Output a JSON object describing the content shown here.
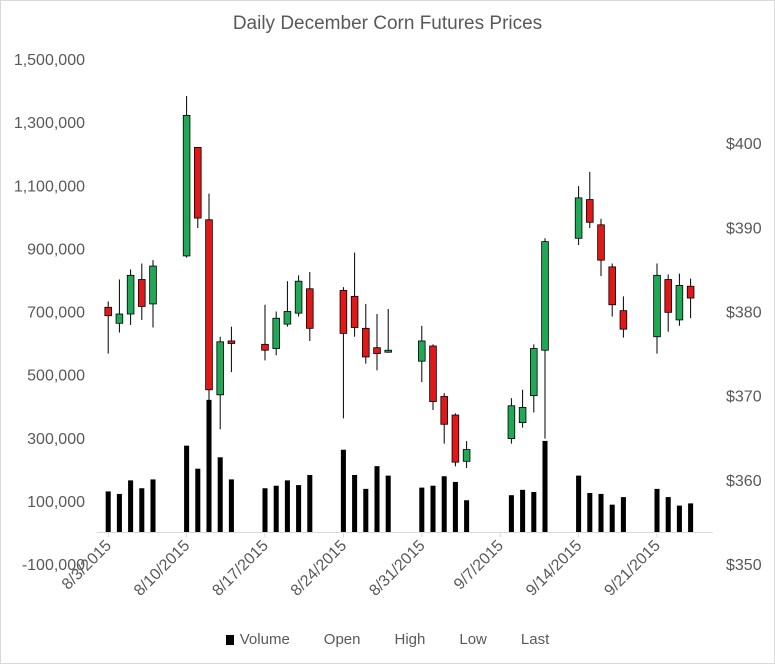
{
  "chart_data": {
    "type": "candlestick",
    "title": "Daily December Corn Futures Prices",
    "colors": {
      "up": "#21a856",
      "down": "#e01818",
      "volume": "#000000",
      "axis": "#d9d9d9",
      "text": "#595959"
    },
    "y_left": {
      "label": "",
      "ylim": [
        -100000,
        1500000
      ],
      "ticks": [
        "-100,000",
        "100,000",
        "300,000",
        "500,000",
        "700,000",
        "900,000",
        "1,100,000",
        "1,300,000",
        "1,500,000"
      ],
      "tick_values": [
        -100000,
        100000,
        300000,
        500000,
        700000,
        900000,
        1100000,
        1300000,
        1500000
      ]
    },
    "y_right": {
      "label": "",
      "ylim": [
        350,
        410
      ],
      "ticks": [
        "$350",
        "$360",
        "$370",
        "$380",
        "$390",
        "$400"
      ],
      "tick_values": [
        350,
        360,
        370,
        380,
        390,
        400
      ]
    },
    "x_axis": {
      "start_date": "2015-08-02",
      "end_date": "2015-09-26",
      "ticks": [
        "8/3/2015",
        "8/10/2015",
        "8/17/2015",
        "8/24/2015",
        "8/31/2015",
        "9/7/2015",
        "9/14/2015",
        "9/21/2015"
      ],
      "tick_dates": [
        "2015-08-03",
        "2015-08-10",
        "2015-08-17",
        "2015-08-24",
        "2015-08-31",
        "2015-09-07",
        "2015-09-14",
        "2015-09-21"
      ]
    },
    "legend": {
      "position": "bottom",
      "entries": [
        "Volume",
        "Open",
        "High",
        "Low",
        "Last"
      ]
    },
    "grid": false,
    "series": [
      {
        "date": "2015-08-03",
        "volume": 130000,
        "open": 380.5,
        "high": 381.2,
        "low": 375.0,
        "last": 379.5
      },
      {
        "date": "2015-08-04",
        "volume": 122000,
        "open": 378.6,
        "high": 383.8,
        "low": 377.5,
        "last": 379.7
      },
      {
        "date": "2015-08-05",
        "volume": 165000,
        "open": 379.7,
        "high": 385.0,
        "low": 378.4,
        "last": 384.3
      },
      {
        "date": "2015-08-06",
        "volume": 140000,
        "open": 383.8,
        "high": 385.7,
        "low": 379.0,
        "last": 380.6
      },
      {
        "date": "2015-08-07",
        "volume": 168000,
        "open": 380.9,
        "high": 386.1,
        "low": 378.1,
        "last": 385.4
      },
      {
        "date": "2015-08-10",
        "volume": 275000,
        "open": 386.6,
        "high": 405.6,
        "low": 386.4,
        "last": 403.3
      },
      {
        "date": "2015-08-11",
        "volume": 202000,
        "open": 399.5,
        "high": 399.5,
        "low": 389.9,
        "last": 391.1
      },
      {
        "date": "2015-08-12",
        "volume": 420000,
        "open": 390.9,
        "high": 394.0,
        "low": 367.1,
        "last": 370.7
      },
      {
        "date": "2015-08-13",
        "volume": 238000,
        "open": 370.1,
        "high": 377.0,
        "low": 366.0,
        "last": 376.4
      },
      {
        "date": "2015-08-14",
        "volume": 168000,
        "open": 376.5,
        "high": 378.2,
        "low": 372.8,
        "last": 376.2
      },
      {
        "date": "2015-08-17",
        "volume": 140000,
        "open": 376.1,
        "high": 380.8,
        "low": 374.2,
        "last": 375.4
      },
      {
        "date": "2015-08-18",
        "volume": 148000,
        "open": 375.6,
        "high": 380.0,
        "low": 374.8,
        "last": 379.2
      },
      {
        "date": "2015-08-19",
        "volume": 165000,
        "open": 378.5,
        "high": 383.6,
        "low": 378.2,
        "last": 380.0
      },
      {
        "date": "2015-08-20",
        "volume": 150000,
        "open": 379.8,
        "high": 384.3,
        "low": 379.4,
        "last": 383.6
      },
      {
        "date": "2015-08-21",
        "volume": 182000,
        "open": 382.7,
        "high": 384.7,
        "low": 376.5,
        "last": 378.0
      },
      {
        "date": "2015-08-24",
        "volume": 262000,
        "open": 382.5,
        "high": 382.9,
        "low": 367.3,
        "last": 377.4
      },
      {
        "date": "2015-08-25",
        "volume": 182000,
        "open": 381.8,
        "high": 387.0,
        "low": 377.0,
        "last": 378.1
      },
      {
        "date": "2015-08-26",
        "volume": 138000,
        "open": 378.0,
        "high": 380.9,
        "low": 373.8,
        "last": 374.6
      },
      {
        "date": "2015-08-27",
        "volume": 210000,
        "open": 375.7,
        "high": 379.7,
        "low": 373.0,
        "last": 375.0
      },
      {
        "date": "2015-08-28",
        "volume": 180000,
        "open": 375.3,
        "high": 380.3,
        "low": 375.1,
        "last": 375.4
      },
      {
        "date": "2015-08-31",
        "volume": 142000,
        "open": 374.1,
        "high": 378.3,
        "low": 371.6,
        "last": 376.5
      },
      {
        "date": "2015-09-01",
        "volume": 148000,
        "open": 375.9,
        "high": 376.1,
        "low": 368.3,
        "last": 369.3
      },
      {
        "date": "2015-09-02",
        "volume": 178000,
        "open": 369.9,
        "high": 370.3,
        "low": 364.3,
        "last": 366.6
      },
      {
        "date": "2015-09-03",
        "volume": 160000,
        "open": 367.7,
        "high": 367.9,
        "low": 361.6,
        "last": 362.1
      },
      {
        "date": "2015-09-04",
        "volume": 102000,
        "open": 362.2,
        "high": 364.6,
        "low": 361.4,
        "last": 363.6
      },
      {
        "date": "2015-09-08",
        "volume": 118000,
        "open": 364.9,
        "high": 369.7,
        "low": 364.3,
        "last": 368.8
      },
      {
        "date": "2015-09-09",
        "volume": 135000,
        "open": 366.8,
        "high": 370.7,
        "low": 366.2,
        "last": 368.6
      },
      {
        "date": "2015-09-10",
        "volume": 128000,
        "open": 370.0,
        "high": 376.1,
        "low": 368.0,
        "last": 375.6
      },
      {
        "date": "2015-09-11",
        "volume": 290000,
        "open": 375.4,
        "high": 388.7,
        "low": 364.9,
        "last": 388.3
      },
      {
        "date": "2015-09-14",
        "volume": 180000,
        "open": 388.7,
        "high": 394.9,
        "low": 387.9,
        "last": 393.5
      },
      {
        "date": "2015-09-15",
        "volume": 125000,
        "open": 393.3,
        "high": 396.6,
        "low": 389.9,
        "last": 390.6
      },
      {
        "date": "2015-09-16",
        "volume": 122000,
        "open": 390.3,
        "high": 391.0,
        "low": 384.2,
        "last": 386.1
      },
      {
        "date": "2015-09-17",
        "volume": 88000,
        "open": 385.3,
        "high": 385.7,
        "low": 379.4,
        "last": 380.8
      },
      {
        "date": "2015-09-18",
        "volume": 112000,
        "open": 380.1,
        "high": 381.8,
        "low": 376.9,
        "last": 377.9
      },
      {
        "date": "2015-09-21",
        "volume": 138000,
        "open": 377.0,
        "high": 385.7,
        "low": 375.0,
        "last": 384.3
      },
      {
        "date": "2015-09-22",
        "volume": 112000,
        "open": 383.8,
        "high": 384.4,
        "low": 377.6,
        "last": 379.9
      },
      {
        "date": "2015-09-23",
        "volume": 85000,
        "open": 379.0,
        "high": 384.5,
        "low": 378.3,
        "last": 383.1
      },
      {
        "date": "2015-09-24",
        "volume": 92000,
        "open": 383.0,
        "high": 383.9,
        "low": 379.2,
        "last": 381.6
      }
    ]
  }
}
